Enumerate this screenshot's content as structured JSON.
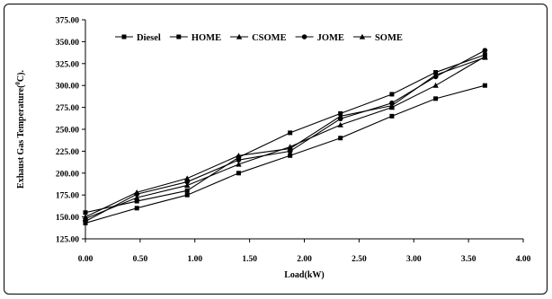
{
  "chart_data": {
    "type": "line",
    "title": "",
    "xlabel": "Load(kW)",
    "ylabel_prefix": "Exhaust Gas Temperature(",
    "ylabel_sup": "0",
    "ylabel_suffix": "C).",
    "xlim": [
      0,
      4
    ],
    "ylim": [
      125,
      375
    ],
    "x_ticks": [
      0,
      0.5,
      1,
      1.5,
      2,
      2.5,
      3,
      3.5,
      4
    ],
    "x_tick_labels": [
      "0.00",
      "0.50",
      "1.00",
      "1.50",
      "2.00",
      "2.50",
      "3.00",
      "3.50",
      "4.00"
    ],
    "y_ticks": [
      125,
      150,
      175,
      200,
      225,
      250,
      275,
      300,
      325,
      350,
      375
    ],
    "y_tick_labels": [
      "125.00",
      "150.00",
      "175.00",
      "200.00",
      "225.00",
      "250.00",
      "275.00",
      "300.00",
      "325.00",
      "350.00",
      "375.00"
    ],
    "grid": false,
    "legend_position": "top-left",
    "series": [
      {
        "name": "Diesel",
        "marker": "square",
        "x": [
          0,
          0.47,
          0.93,
          1.4,
          1.87,
          2.33,
          2.8,
          3.2,
          3.65
        ],
        "y": [
          143,
          160,
          175,
          200,
          220,
          240,
          265,
          285,
          300
        ]
      },
      {
        "name": "HOME",
        "marker": "square",
        "x": [
          0,
          0.47,
          0.93,
          1.4,
          1.87,
          2.33,
          2.8,
          3.2,
          3.65
        ],
        "y": [
          155,
          168,
          180,
          218,
          246,
          268,
          290,
          315,
          335
        ]
      },
      {
        "name": "CSOME",
        "marker": "triangle",
        "x": [
          0,
          0.47,
          0.93,
          1.4,
          1.87,
          2.33,
          2.8,
          3.2,
          3.65
        ],
        "y": [
          148,
          172,
          186,
          210,
          230,
          255,
          275,
          300,
          333
        ]
      },
      {
        "name": "JOME",
        "marker": "circle",
        "x": [
          0,
          0.47,
          0.93,
          1.4,
          1.87,
          2.33,
          2.8,
          3.2,
          3.65
        ],
        "y": [
          145,
          176,
          190,
          215,
          225,
          262,
          280,
          310,
          340
        ]
      },
      {
        "name": "SOME",
        "marker": "triangle",
        "x": [
          0,
          0.47,
          0.93,
          1.4,
          1.87,
          2.33,
          2.8,
          3.2,
          3.65
        ],
        "y": [
          150,
          178,
          194,
          220,
          228,
          265,
          277,
          312,
          332
        ]
      }
    ]
  }
}
